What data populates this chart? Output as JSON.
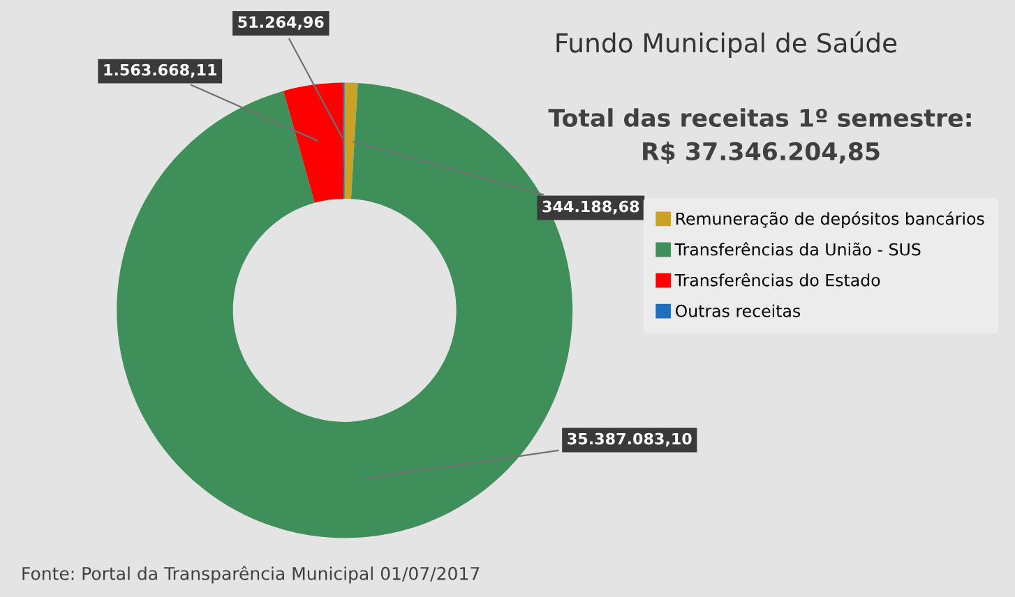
{
  "chart_data": {
    "type": "donut",
    "title": "Fundo Municipal de Saúde",
    "categories": [
      "Remuneração de depósitos bancários",
      "Transferências da União - SUS",
      "Transferências do Estado",
      "Outras receitas"
    ],
    "values": [
      344188.68,
      35387083.1,
      1563668.11,
      51264.96
    ],
    "colors": [
      "#c9a227",
      "#3f8f5a",
      "#ff0000",
      "#1f6fbf"
    ],
    "value_labels": [
      "344.188,68",
      "35.387.083,10",
      "1.563.668,11",
      "51.264,96"
    ],
    "annotations": [
      "Total das receitas 1º semestre:",
      "R$ 37.346.204,85",
      "Fonte: Portal da Transparência Municipal 01/07/2017"
    ],
    "legend": "right"
  }
}
